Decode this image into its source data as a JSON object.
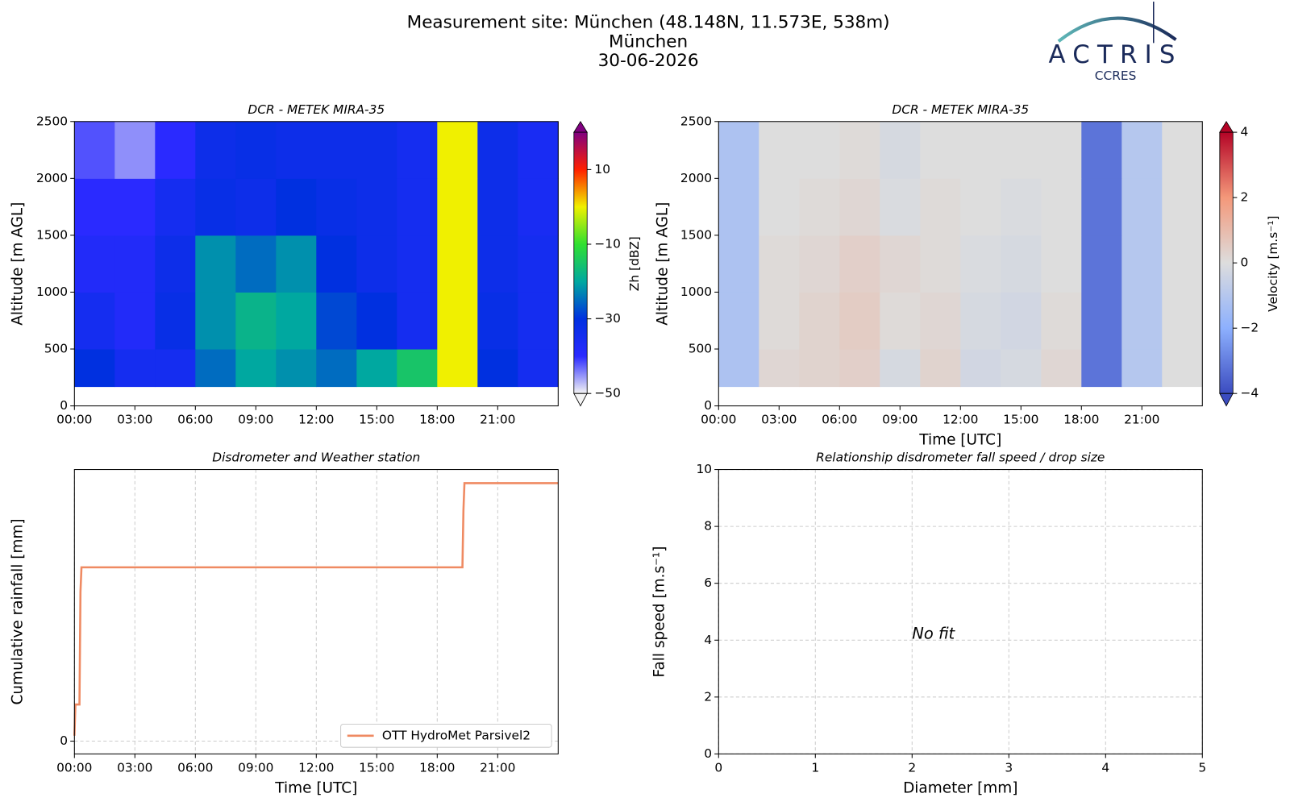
{
  "header": {
    "title": "Measurement site: München (48.148N, 11.573E, 538m)",
    "site": "München",
    "date": "30-06-2026"
  },
  "logo": {
    "name": "ACTRIS",
    "sub": "CCRES"
  },
  "chart_data": [
    {
      "type": "heatmap",
      "title": "DCR - METEK MIRA-35",
      "y_label": "Altitude [m AGL]",
      "colorbar_label": "Zh [dBZ]",
      "x_bins": [
        0,
        2,
        4,
        6,
        8,
        10,
        12,
        14,
        16,
        18,
        20,
        22,
        24
      ],
      "y_bins": [
        170,
        500,
        1000,
        1500,
        2000,
        2500
      ],
      "z": [
        [
          -30,
          -35,
          -35,
          -25,
          -20,
          -22,
          -25,
          -20,
          -15,
          0,
          -30,
          -35
        ],
        [
          -35,
          -38,
          -32,
          -22,
          -18,
          -20,
          -28,
          -30,
          -35,
          0,
          -32,
          -35
        ],
        [
          -38,
          -38,
          -33,
          -22,
          -25,
          -22,
          -30,
          -33,
          -35,
          0,
          -33,
          -35
        ],
        [
          -40,
          -40,
          -35,
          -32,
          -33,
          -30,
          -32,
          -33,
          -35,
          0,
          -33,
          -36
        ],
        [
          -42,
          -45,
          -40,
          -33,
          -32,
          -33,
          -33,
          -33,
          -35,
          0,
          -33,
          -36
        ]
      ],
      "clim": [
        -50,
        20
      ],
      "cticks": [
        10,
        {
          "value": -10,
          "label": "−10"
        },
        {
          "value": -30,
          "label": "−30"
        },
        {
          "value": -50,
          "label": "−50"
        }
      ],
      "colors": [
        "#f4f4f4",
        "#2a2aff",
        "#0030e0",
        "#00a8a0",
        "#30e030",
        "#f0f000",
        "#ff2000",
        "#800080"
      ],
      "xlim": [
        0,
        24
      ],
      "ylim": [
        0,
        2500
      ],
      "xticks": [
        {
          "value": 0,
          "label": "00:00"
        },
        {
          "value": 3,
          "label": "03:00"
        },
        {
          "value": 6,
          "label": "06:00"
        },
        {
          "value": 9,
          "label": "09:00"
        },
        {
          "value": 12,
          "label": "12:00"
        },
        {
          "value": 15,
          "label": "15:00"
        },
        {
          "value": 18,
          "label": "18:00"
        },
        {
          "value": 21,
          "label": "21:00"
        }
      ],
      "yticks": [
        0,
        500,
        1000,
        1500,
        2000,
        2500
      ]
    },
    {
      "type": "heatmap",
      "title": "DCR - METEK MIRA-35",
      "y_label": "Altitude [m AGL]",
      "x_label": "Time [UTC]",
      "colorbar_label": "Velocity [m.s⁻¹]",
      "x_bins": [
        0,
        2,
        4,
        6,
        8,
        10,
        12,
        14,
        16,
        18,
        20,
        22,
        24
      ],
      "y_bins": [
        170,
        500,
        1000,
        1500,
        2000,
        2500
      ],
      "z": [
        [
          -1.2,
          0.2,
          0.3,
          0.4,
          -0.2,
          0.3,
          -0.3,
          -0.2,
          0.2,
          -3.2,
          -1.0,
          0
        ],
        [
          -1.2,
          0.1,
          0.3,
          0.5,
          0.1,
          0.2,
          -0.2,
          -0.3,
          0.1,
          -3.2,
          -1.0,
          0
        ],
        [
          -1.2,
          0.1,
          0.2,
          0.4,
          0.2,
          0.1,
          -0.1,
          -0.2,
          0,
          -3.2,
          -1.0,
          0
        ],
        [
          -1.2,
          0,
          0.1,
          0.2,
          -0.1,
          0.1,
          0,
          -0.1,
          0,
          -3.2,
          -1.0,
          0
        ],
        [
          -1.2,
          0,
          0,
          0.1,
          -0.2,
          0,
          0,
          0,
          0,
          -3.2,
          -1.0,
          0
        ]
      ],
      "clim": [
        -4,
        4
      ],
      "cticks": [
        4,
        2,
        0,
        {
          "value": -2,
          "label": "−2"
        },
        {
          "value": -4,
          "label": "−4"
        }
      ],
      "colors": [
        "#3b4cc0",
        "#8db0fe",
        "#dddddd",
        "#f4987a",
        "#b40426"
      ],
      "xlim": [
        0,
        24
      ],
      "ylim": [
        0,
        2500
      ],
      "xticks": [
        {
          "value": 0,
          "label": "00:00"
        },
        {
          "value": 3,
          "label": "03:00"
        },
        {
          "value": 6,
          "label": "06:00"
        },
        {
          "value": 9,
          "label": "09:00"
        },
        {
          "value": 12,
          "label": "12:00"
        },
        {
          "value": 15,
          "label": "15:00"
        },
        {
          "value": 18,
          "label": "18:00"
        },
        {
          "value": 21,
          "label": "21:00"
        }
      ],
      "yticks": [
        0,
        500,
        1000,
        1500,
        2000,
        2500
      ]
    },
    {
      "type": "line",
      "title": "Disdrometer and Weather station",
      "y_label": "Cumulative rainfall [mm]",
      "x_label": "Time [UTC]",
      "x": [
        0,
        0.05,
        0.1,
        0.25,
        0.3,
        0.35,
        19.25,
        19.3,
        19.35,
        24
      ],
      "series": [
        {
          "name": "OTT HydroMet Parsivel2",
          "color": "#ef8a62",
          "values": [
            0.02,
            0.135,
            0.135,
            0.135,
            0.55,
            0.64,
            0.64,
            0.85,
            0.95,
            0.95
          ]
        }
      ],
      "xlim": [
        0,
        24
      ],
      "ylim": [
        -0.047,
        1.0
      ],
      "xticks": [
        {
          "value": 0,
          "label": "00:00"
        },
        {
          "value": 3,
          "label": "03:00"
        },
        {
          "value": 6,
          "label": "06:00"
        },
        {
          "value": 9,
          "label": "09:00"
        },
        {
          "value": 12,
          "label": "12:00"
        },
        {
          "value": 15,
          "label": "15:00"
        },
        {
          "value": 18,
          "label": "18:00"
        },
        {
          "value": 21,
          "label": "21:00"
        }
      ],
      "yticks": [
        0
      ],
      "grid": true,
      "legend": "lower right"
    },
    {
      "type": "scatter",
      "title": "Relationship disdrometer fall speed / drop size",
      "y_label": "Fall speed [m.s⁻¹]",
      "x_label": "Diameter [mm]",
      "annotation": "No fit",
      "xlim": [
        0,
        5
      ],
      "ylim": [
        0,
        10
      ],
      "xticks": [
        0,
        1,
        2,
        3,
        4,
        5
      ],
      "yticks": [
        0,
        2,
        4,
        6,
        8,
        10
      ],
      "grid": true
    }
  ]
}
